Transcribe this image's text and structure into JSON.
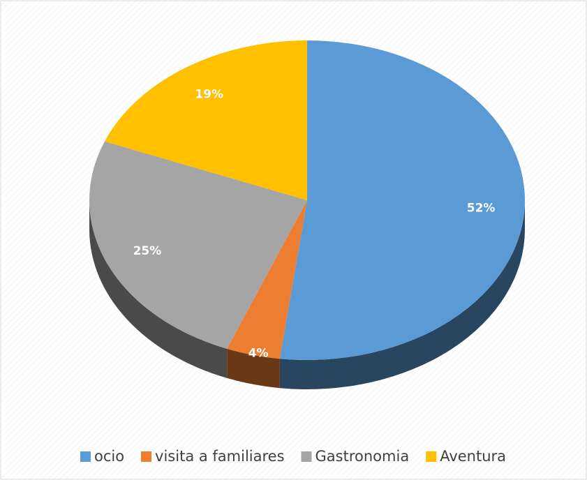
{
  "chart_data": {
    "type": "pie",
    "categories": [
      "ocio",
      "visita a familiares",
      "Gastronomia",
      "Aventura"
    ],
    "values": [
      52,
      4,
      25,
      19
    ],
    "value_labels": [
      "52%",
      "4%",
      "25%",
      "19%"
    ],
    "colors": [
      "#5b9bd5",
      "#ed7d31",
      "#a5a5a5",
      "#ffc000"
    ],
    "legend": "bottom"
  }
}
